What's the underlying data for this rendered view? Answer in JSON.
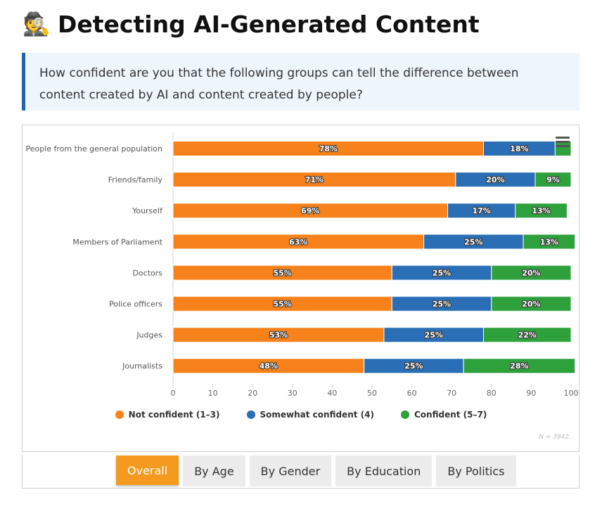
{
  "header": {
    "icon": "detective-emoji",
    "emoji": "🕵️",
    "title": "Detecting AI-Generated Content"
  },
  "question": "How confident are you that the following groups can tell the difference between content created by AI and content created by people?",
  "chart_data": {
    "type": "bar",
    "orientation": "horizontal",
    "stacked": true,
    "categories": [
      "People from the general population",
      "Friends/family",
      "Yourself",
      "Members of Parliament",
      "Doctors",
      "Police officers",
      "Judges",
      "Journalists"
    ],
    "series": [
      {
        "name": "Not confident (1–3)",
        "color": "#f7821b",
        "values": [
          78,
          71,
          69,
          63,
          55,
          55,
          53,
          48
        ]
      },
      {
        "name": "Somewhat confident (4)",
        "color": "#2a6fb6",
        "values": [
          18,
          20,
          17,
          25,
          25,
          25,
          25,
          25
        ]
      },
      {
        "name": "Confident (5–7)",
        "color": "#2ea03c",
        "values": [
          4,
          9,
          13,
          13,
          20,
          20,
          22,
          28
        ]
      }
    ],
    "data_labels": [
      [
        "78%",
        "71%",
        "69%",
        "63%",
        "55%",
        "55%",
        "53%",
        "48%"
      ],
      [
        "18%",
        "20%",
        "17%",
        "25%",
        "25%",
        "25%",
        "25%",
        "25%"
      ],
      [
        "",
        "9%",
        "13%",
        "13%",
        "20%",
        "20%",
        "22%",
        "28%"
      ]
    ],
    "xlim": [
      0,
      100
    ],
    "xticks": [
      0,
      10,
      20,
      30,
      40,
      50,
      60,
      70,
      80,
      90,
      100
    ],
    "xlabel": "",
    "ylabel": "",
    "legend": "bottom",
    "grid": false
  },
  "note": "N = 3942.",
  "tabs": [
    "Overall",
    "By Age",
    "By Gender",
    "By Education",
    "By Politics"
  ],
  "active_tab": "Overall"
}
